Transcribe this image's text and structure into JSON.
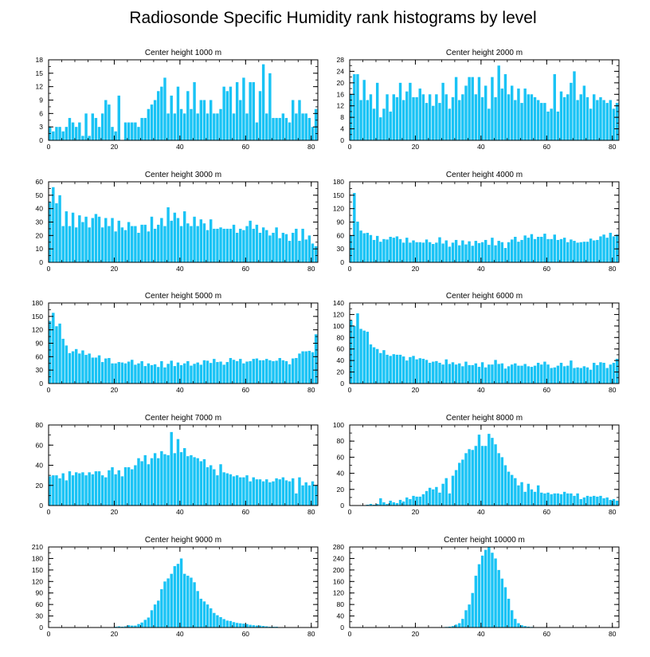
{
  "title": "Radiosonde Specific Humidity rank histograms by level",
  "colors": {
    "bar": "#19c3f5",
    "axis": "#000000",
    "background": "#ffffff"
  },
  "chart_data": [
    {
      "type": "bar",
      "title": "Center height 1000 m",
      "xlabel": "",
      "ylabel": "",
      "xlim": [
        0,
        82
      ],
      "ylim": [
        0,
        18
      ],
      "xticks": [
        0,
        20,
        40,
        60,
        80
      ],
      "yticks": [
        0,
        3,
        6,
        9,
        12,
        15,
        18
      ],
      "values": [
        3,
        2,
        3,
        3,
        2,
        3,
        5,
        4,
        3,
        4,
        1,
        6,
        1,
        6,
        5,
        3,
        6,
        9,
        8,
        3,
        2,
        10,
        0,
        4,
        4,
        4,
        4,
        3,
        5,
        5,
        7,
        8,
        9,
        11,
        12,
        14,
        6,
        10,
        6,
        12,
        7,
        6,
        11,
        7,
        13,
        6,
        9,
        9,
        6,
        9,
        6,
        6,
        7,
        12,
        11,
        12,
        6,
        13,
        9,
        14,
        6,
        13,
        13,
        4,
        11,
        17,
        6,
        15,
        5,
        5,
        5,
        6,
        5,
        4,
        9,
        6,
        9,
        6,
        6,
        5,
        3,
        7
      ]
    },
    {
      "type": "bar",
      "title": "Center height 2000 m",
      "xlabel": "",
      "ylabel": "",
      "xlim": [
        0,
        82
      ],
      "ylim": [
        0,
        28
      ],
      "xticks": [
        0,
        20,
        40,
        60,
        80
      ],
      "yticks": [
        0,
        4,
        8,
        12,
        16,
        20,
        24,
        28
      ],
      "values": [
        16,
        23,
        23,
        14,
        21,
        14,
        16,
        11,
        20,
        8,
        11,
        16,
        10,
        16,
        15,
        20,
        14,
        17,
        20,
        15,
        15,
        18,
        16,
        13,
        16,
        12,
        16,
        13,
        20,
        16,
        11,
        15,
        22,
        14,
        16,
        19,
        22,
        22,
        16,
        22,
        15,
        19,
        11,
        22,
        15,
        26,
        18,
        23,
        16,
        19,
        14,
        18,
        13,
        18,
        16,
        16,
        15,
        14,
        13,
        13,
        10,
        11,
        23,
        10,
        17,
        15,
        16,
        20,
        24,
        14,
        16,
        19,
        15,
        11,
        16,
        14,
        15,
        14,
        13,
        14,
        11,
        13
      ]
    },
    {
      "type": "bar",
      "title": "Center height 3000 m",
      "xlabel": "",
      "ylabel": "",
      "xlim": [
        0,
        82
      ],
      "ylim": [
        0,
        60
      ],
      "xticks": [
        0,
        20,
        40,
        60,
        80
      ],
      "yticks": [
        0,
        10,
        20,
        30,
        40,
        50,
        60
      ],
      "values": [
        45,
        56,
        44,
        50,
        27,
        38,
        27,
        37,
        26,
        35,
        30,
        34,
        26,
        33,
        36,
        34,
        26,
        33,
        27,
        33,
        23,
        31,
        26,
        24,
        30,
        27,
        27,
        22,
        28,
        28,
        23,
        34,
        25,
        28,
        33,
        27,
        41,
        31,
        37,
        33,
        27,
        38,
        29,
        27,
        34,
        27,
        32,
        29,
        24,
        32,
        25,
        25,
        26,
        25,
        25,
        25,
        28,
        22,
        25,
        24,
        27,
        31,
        25,
        28,
        22,
        26,
        24,
        20,
        22,
        26,
        18,
        22,
        21,
        16,
        22,
        25,
        16,
        25,
        17,
        20,
        14,
        12
      ]
    },
    {
      "type": "bar",
      "title": "Center height 4000 m",
      "xlabel": "",
      "ylabel": "",
      "xlim": [
        0,
        82
      ],
      "ylim": [
        0,
        180
      ],
      "xticks": [
        0,
        20,
        40,
        60,
        80
      ],
      "yticks": [
        0,
        30,
        60,
        90,
        120,
        150,
        180
      ],
      "values": [
        60,
        155,
        91,
        71,
        65,
        66,
        61,
        50,
        59,
        46,
        52,
        51,
        57,
        55,
        58,
        52,
        44,
        55,
        44,
        49,
        45,
        45,
        44,
        51,
        45,
        41,
        44,
        56,
        42,
        49,
        35,
        44,
        50,
        38,
        49,
        40,
        47,
        37,
        48,
        43,
        45,
        50,
        39,
        55,
        38,
        48,
        45,
        32,
        45,
        51,
        57,
        46,
        50,
        60,
        55,
        63,
        52,
        57,
        57,
        64,
        52,
        52,
        62,
        50,
        52,
        55,
        45,
        51,
        48,
        44,
        45,
        46,
        46,
        53,
        49,
        50,
        58,
        62,
        55,
        66,
        58,
        62
      ]
    },
    {
      "type": "bar",
      "title": "Center height 5000 m",
      "xlabel": "",
      "ylabel": "",
      "xlim": [
        0,
        82
      ],
      "ylim": [
        0,
        180
      ],
      "xticks": [
        0,
        20,
        40,
        60,
        80
      ],
      "yticks": [
        0,
        30,
        60,
        90,
        120,
        150,
        180
      ],
      "values": [
        140,
        158,
        128,
        134,
        100,
        85,
        68,
        72,
        77,
        67,
        74,
        64,
        67,
        58,
        58,
        63,
        48,
        56,
        57,
        45,
        45,
        48,
        47,
        45,
        49,
        53,
        42,
        45,
        50,
        39,
        45,
        41,
        43,
        37,
        50,
        36,
        44,
        51,
        39,
        47,
        41,
        45,
        50,
        40,
        44,
        47,
        42,
        52,
        51,
        46,
        55,
        48,
        49,
        42,
        48,
        57,
        53,
        50,
        55,
        45,
        49,
        50,
        55,
        56,
        52,
        52,
        55,
        52,
        50,
        51,
        57,
        52,
        50,
        43,
        56,
        57,
        67,
        72,
        72,
        73,
        70,
        110
      ]
    },
    {
      "type": "bar",
      "title": "Center height 6000 m",
      "xlabel": "",
      "ylabel": "",
      "xlim": [
        0,
        82
      ],
      "ylim": [
        0,
        140
      ],
      "xticks": [
        0,
        20,
        40,
        60,
        80
      ],
      "yticks": [
        0,
        20,
        40,
        60,
        80,
        100,
        120,
        140
      ],
      "values": [
        110,
        100,
        122,
        95,
        92,
        90,
        68,
        63,
        60,
        53,
        58,
        50,
        48,
        51,
        50,
        50,
        47,
        40,
        46,
        48,
        42,
        44,
        43,
        41,
        36,
        38,
        39,
        36,
        33,
        42,
        34,
        37,
        33,
        35,
        30,
        38,
        32,
        32,
        35,
        29,
        37,
        28,
        33,
        33,
        41,
        34,
        35,
        26,
        30,
        33,
        35,
        31,
        31,
        34,
        30,
        29,
        31,
        36,
        33,
        38,
        33,
        27,
        28,
        31,
        36,
        30,
        31,
        40,
        27,
        28,
        27,
        30,
        28,
        24,
        36,
        32,
        37,
        36,
        27,
        33,
        36,
        43
      ]
    },
    {
      "type": "bar",
      "title": "Center height 7000 m",
      "xlabel": "",
      "ylabel": "",
      "xlim": [
        0,
        82
      ],
      "ylim": [
        0,
        80
      ],
      "xticks": [
        0,
        20,
        40,
        60,
        80
      ],
      "yticks": [
        0,
        20,
        40,
        60,
        80
      ],
      "values": [
        29,
        30,
        30,
        27,
        32,
        25,
        34,
        30,
        33,
        32,
        33,
        30,
        33,
        31,
        34,
        34,
        30,
        28,
        35,
        38,
        31,
        35,
        29,
        38,
        38,
        36,
        40,
        47,
        44,
        50,
        41,
        47,
        52,
        47,
        54,
        51,
        50,
        73,
        52,
        66,
        53,
        57,
        49,
        50,
        48,
        47,
        44,
        46,
        38,
        40,
        36,
        30,
        41,
        33,
        32,
        31,
        29,
        30,
        28,
        28,
        30,
        24,
        28,
        26,
        26,
        24,
        26,
        23,
        24,
        27,
        26,
        28,
        25,
        24,
        27,
        12,
        28,
        20,
        23,
        20,
        24,
        20
      ]
    },
    {
      "type": "bar",
      "title": "Center height 8000 m",
      "xlabel": "",
      "ylabel": "",
      "xlim": [
        0,
        82
      ],
      "ylim": [
        0,
        100
      ],
      "xticks": [
        0,
        20,
        40,
        60,
        80
      ],
      "yticks": [
        0,
        20,
        40,
        60,
        80,
        100
      ],
      "values": [
        0,
        0,
        0,
        0,
        0,
        1,
        2,
        1,
        2,
        9,
        4,
        2,
        6,
        4,
        3,
        7,
        5,
        10,
        8,
        12,
        11,
        11,
        14,
        18,
        22,
        20,
        23,
        16,
        27,
        34,
        15,
        37,
        44,
        53,
        57,
        65,
        70,
        69,
        74,
        88,
        74,
        74,
        89,
        84,
        76,
        65,
        60,
        50,
        42,
        38,
        34,
        25,
        29,
        17,
        27,
        20,
        17,
        25,
        16,
        15,
        16,
        14,
        15,
        15,
        14,
        17,
        15,
        15,
        12,
        15,
        8,
        10,
        12,
        11,
        12,
        11,
        12,
        9,
        10,
        7,
        8,
        6
      ]
    },
    {
      "type": "bar",
      "title": "Center height 9000 m",
      "xlabel": "",
      "ylabel": "",
      "xlim": [
        0,
        82
      ],
      "ylim": [
        0,
        210
      ],
      "xticks": [
        0,
        20,
        40,
        60,
        80
      ],
      "yticks": [
        0,
        30,
        60,
        90,
        120,
        150,
        180,
        210
      ],
      "values": [
        0,
        0,
        0,
        0,
        0,
        0,
        0,
        0,
        0,
        0,
        0,
        0,
        0,
        0,
        0,
        0,
        0,
        0,
        0,
        0,
        2,
        3,
        2,
        3,
        6,
        5,
        5,
        9,
        13,
        20,
        26,
        45,
        60,
        70,
        100,
        120,
        128,
        140,
        160,
        166,
        180,
        140,
        135,
        130,
        118,
        95,
        75,
        68,
        60,
        50,
        38,
        32,
        27,
        22,
        18,
        17,
        14,
        12,
        11,
        10,
        9,
        7,
        6,
        5,
        5,
        4,
        3,
        2,
        2,
        2,
        1,
        1,
        0,
        0,
        0,
        0,
        0,
        0,
        0,
        0,
        0,
        0
      ]
    },
    {
      "type": "bar",
      "title": "Center height 10000 m",
      "xlabel": "",
      "ylabel": "",
      "xlim": [
        0,
        82
      ],
      "ylim": [
        0,
        280
      ],
      "xticks": [
        0,
        20,
        40,
        60,
        80
      ],
      "yticks": [
        0,
        40,
        80,
        120,
        160,
        200,
        240,
        280
      ],
      "values": [
        0,
        0,
        0,
        0,
        0,
        0,
        0,
        0,
        0,
        0,
        0,
        0,
        0,
        0,
        0,
        0,
        0,
        0,
        0,
        0,
        0,
        0,
        0,
        0,
        0,
        0,
        0,
        0,
        0,
        2,
        3,
        5,
        10,
        15,
        30,
        60,
        80,
        120,
        180,
        220,
        250,
        270,
        280,
        260,
        240,
        200,
        170,
        140,
        100,
        60,
        30,
        15,
        8,
        5,
        3,
        2,
        1,
        1,
        0,
        0,
        0,
        0,
        0,
        0,
        0,
        0,
        0,
        0,
        0,
        0,
        0,
        0,
        0,
        0,
        0,
        0,
        0,
        0,
        0,
        0,
        0,
        0
      ]
    }
  ]
}
